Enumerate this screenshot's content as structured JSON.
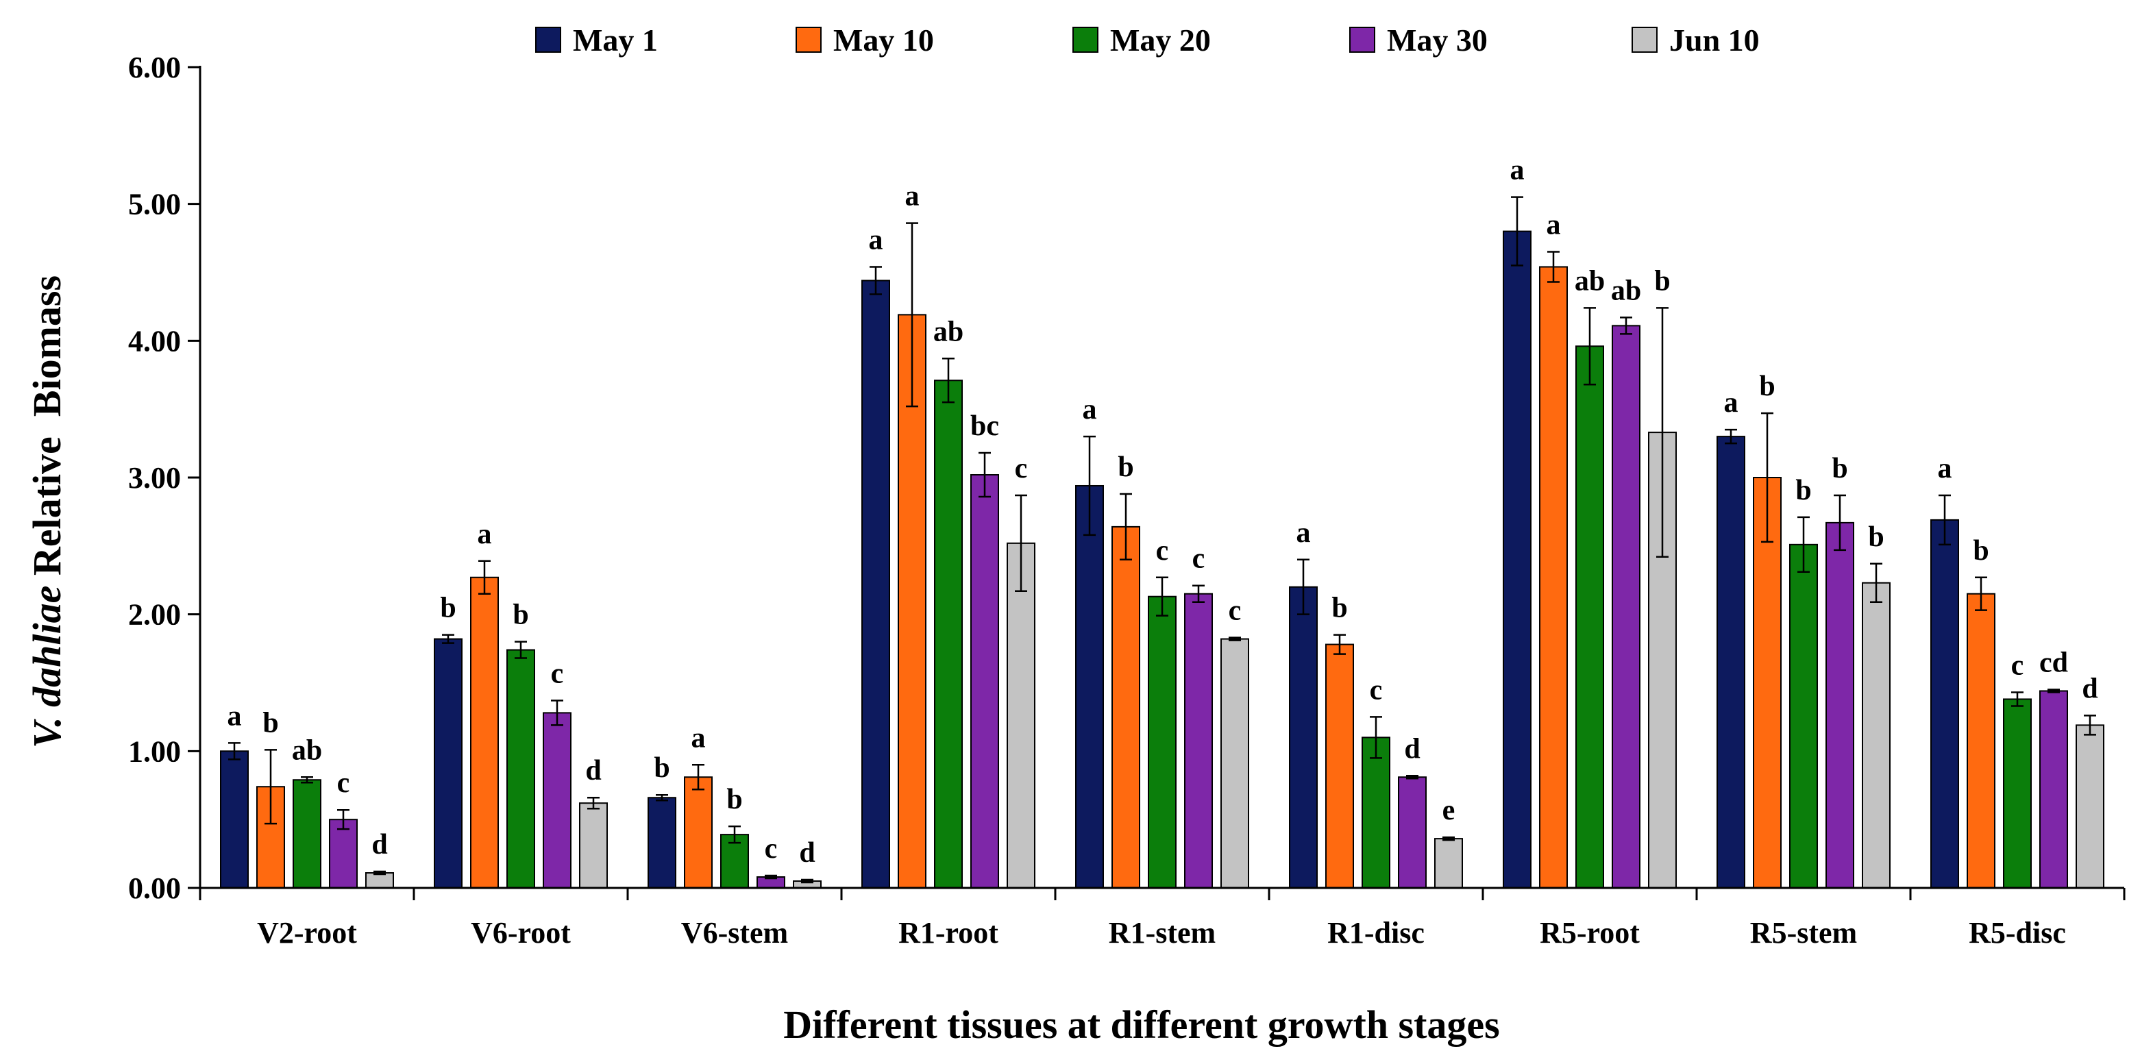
{
  "chart_data": {
    "type": "bar",
    "title": "",
    "xlabel": "Different tissues at different growth stages",
    "ylabel_italic": "V. dahliae",
    "ylabel_rest": " Relative  Biomass",
    "ylim": [
      0,
      6
    ],
    "yticks": [
      "0.00",
      "1.00",
      "2.00",
      "3.00",
      "4.00",
      "5.00",
      "6.00"
    ],
    "categories": [
      "V2-root",
      "V6-root",
      "V6-stem",
      "R1-root",
      "R1-stem",
      "R1-disc",
      "R5-root",
      "R5-stem",
      "R5-disc"
    ],
    "legend_position": "top",
    "series": [
      {
        "name": "May 1",
        "color": "#0d1a5e",
        "values": [
          1.0,
          1.82,
          0.66,
          4.44,
          2.94,
          2.2,
          4.8,
          3.3,
          2.69
        ],
        "errors": [
          0.06,
          0.03,
          0.02,
          0.1,
          0.36,
          0.2,
          0.25,
          0.05,
          0.18
        ],
        "sig": [
          "a",
          "b",
          "b",
          "a",
          "a",
          "a",
          "a",
          "a",
          "a"
        ]
      },
      {
        "name": "May 10",
        "color": "#ff6a10",
        "values": [
          0.74,
          2.27,
          0.81,
          4.19,
          2.64,
          1.78,
          4.54,
          3.0,
          2.15
        ],
        "errors": [
          0.27,
          0.12,
          0.09,
          0.67,
          0.24,
          0.07,
          0.11,
          0.47,
          0.12
        ],
        "sig": [
          "b",
          "a",
          "a",
          "a",
          "b",
          "b",
          "a",
          "b",
          "b"
        ]
      },
      {
        "name": "May 20",
        "color": "#0b7e0b",
        "values": [
          0.79,
          1.74,
          0.39,
          3.71,
          2.13,
          1.1,
          3.96,
          2.51,
          1.38
        ],
        "errors": [
          0.02,
          0.06,
          0.06,
          0.16,
          0.14,
          0.15,
          0.28,
          0.2,
          0.05
        ],
        "sig": [
          "ab",
          "b",
          "b",
          "ab",
          "c",
          "c",
          "ab",
          "b",
          "c"
        ]
      },
      {
        "name": "May 30",
        "color": "#7e27a8",
        "values": [
          0.5,
          1.28,
          0.08,
          3.02,
          2.15,
          0.81,
          4.11,
          2.67,
          1.44
        ],
        "errors": [
          0.07,
          0.09,
          0.01,
          0.16,
          0.06,
          0.01,
          0.06,
          0.2,
          0.01
        ],
        "sig": [
          "c",
          "c",
          "c",
          "bc",
          "c",
          "d",
          "ab",
          "b",
          "cd"
        ]
      },
      {
        "name": "Jun 10",
        "color": "#c3c3c3",
        "values": [
          0.11,
          0.62,
          0.05,
          2.52,
          1.82,
          0.36,
          3.33,
          2.23,
          1.19
        ],
        "errors": [
          0.01,
          0.04,
          0.01,
          0.35,
          0.01,
          0.01,
          0.91,
          0.14,
          0.07
        ],
        "sig": [
          "d",
          "d",
          "d",
          "c",
          "c",
          "e",
          "b",
          "b",
          "d"
        ]
      }
    ]
  }
}
